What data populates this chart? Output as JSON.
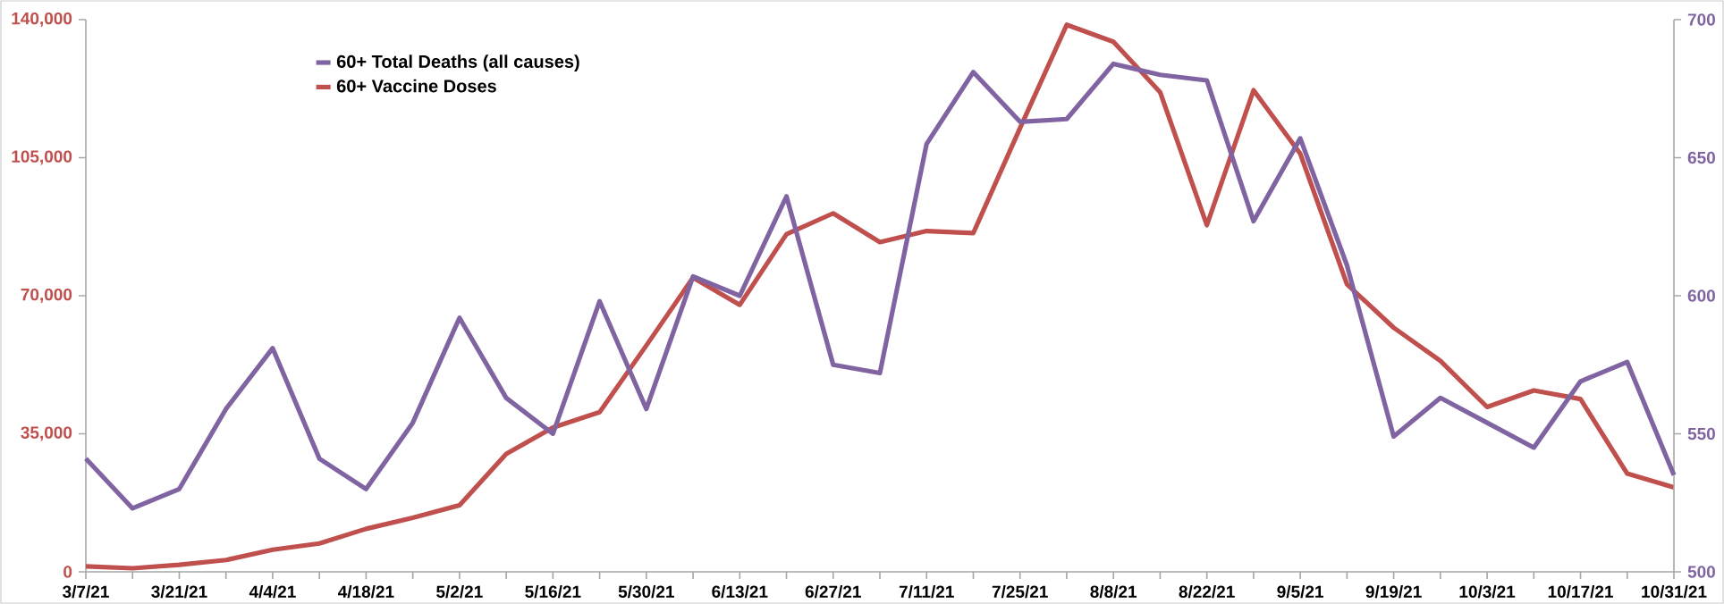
{
  "chart_data": {
    "type": "line",
    "categories": [
      "3/7/21",
      null,
      "3/21/21",
      null,
      "4/4/21",
      null,
      "4/18/21",
      null,
      "5/2/21",
      null,
      "5/16/21",
      null,
      "5/30/21",
      null,
      "6/13/21",
      null,
      "6/27/21",
      null,
      "7/11/21",
      null,
      "7/25/21",
      null,
      "8/8/21",
      null,
      "8/22/21",
      null,
      "9/5/21",
      null,
      "9/19/21",
      null,
      "10/3/21",
      null,
      "10/17/21",
      null,
      "10/31/21"
    ],
    "series": [
      {
        "name": "60+ Total Deaths (all causes)",
        "color": "#8064a2",
        "axis": "y2",
        "values": [
          541,
          523,
          530,
          559,
          581,
          541,
          530,
          554,
          592,
          563,
          550,
          598,
          559,
          607,
          600,
          636,
          575,
          572,
          655,
          681,
          663,
          664,
          684,
          680,
          678,
          627,
          657,
          611,
          549,
          563,
          554,
          545,
          569,
          576,
          535
        ]
      },
      {
        "name": "60+ Vaccine Doses",
        "color": "#c0504d",
        "values": [
          1400,
          900,
          1800,
          3000,
          5600,
          7200,
          10900,
          13700,
          16900,
          29900,
          36600,
          40500,
          57400,
          74600,
          67700,
          85600,
          90900,
          83600,
          86400,
          85900,
          112500,
          138700,
          134400,
          121600,
          87900,
          122100,
          106000,
          72900,
          61900,
          53500,
          41800,
          46000,
          43800,
          24900,
          21400
        ]
      }
    ],
    "ylim": [
      0,
      140000
    ],
    "yticks": [
      {
        "value": 0,
        "label": "0"
      },
      {
        "value": 35000,
        "label": "35,000"
      },
      {
        "value": 70000,
        "label": "70,000"
      },
      {
        "value": 105000,
        "label": "105,000"
      },
      {
        "value": 140000,
        "label": "140,000"
      }
    ],
    "y2lim": [
      500,
      700
    ],
    "y2ticks": [
      500,
      550,
      600,
      650,
      700
    ],
    "legend": "top left"
  }
}
